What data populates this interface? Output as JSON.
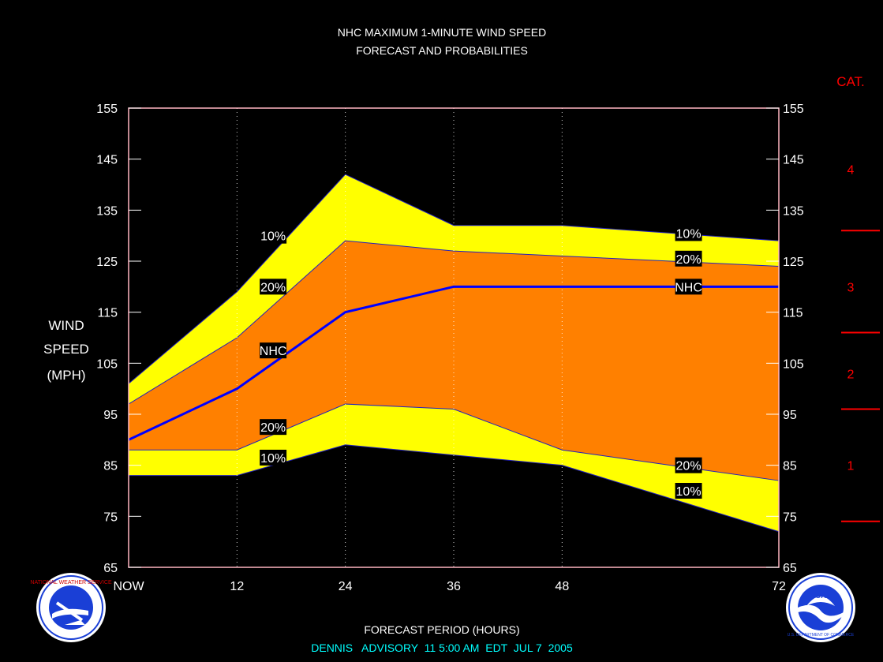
{
  "chart_data": {
    "type": "area",
    "title": "NHC MAXIMUM 1-MINUTE WIND SPEED",
    "subtitle": "FORECAST AND PROBABILITIES",
    "ylabel": [
      "WIND",
      "SPEED",
      "(MPH)"
    ],
    "xlabel": "FORECAST PERIOD (HOURS)",
    "advisory": "DENNIS   ADVISORY  11 5:00 AM  EDT  JUL 7  2005",
    "xlim": [
      0,
      72
    ],
    "ylim": [
      65,
      155
    ],
    "yticks": [
      65,
      75,
      85,
      95,
      105,
      115,
      125,
      135,
      145,
      155
    ],
    "xticks": [
      {
        "x": 0,
        "label": "NOW"
      },
      {
        "x": 12,
        "label": "12"
      },
      {
        "x": 24,
        "label": "24"
      },
      {
        "x": 36,
        "label": "36"
      },
      {
        "x": 48,
        "label": "48"
      },
      {
        "x": 72,
        "label": "72"
      }
    ],
    "x": [
      0,
      12,
      24,
      36,
      48,
      72
    ],
    "series": [
      {
        "name": "10%",
        "role": "upper",
        "values": [
          101,
          119,
          142,
          132,
          132,
          129
        ]
      },
      {
        "name": "20%",
        "role": "upper",
        "values": [
          97,
          110,
          129,
          127,
          126,
          124
        ]
      },
      {
        "name": "NHC",
        "role": "forecast",
        "values": [
          90,
          100,
          115,
          120,
          120,
          120
        ]
      },
      {
        "name": "20%",
        "role": "lower",
        "values": [
          88,
          88,
          97,
          96,
          88,
          82
        ]
      },
      {
        "name": "10%",
        "role": "lower",
        "values": [
          83,
          83,
          89,
          87,
          85,
          72
        ]
      }
    ],
    "curve_labels": [
      {
        "text": "10%",
        "x": 16,
        "y": 130
      },
      {
        "text": "20%",
        "x": 16,
        "y": 120
      },
      {
        "text": "NHC",
        "x": 16,
        "y": 107.5
      },
      {
        "text": "20%",
        "x": 16,
        "y": 92.5
      },
      {
        "text": "10%",
        "x": 16,
        "y": 86.5
      },
      {
        "text": "10%",
        "x": 62,
        "y": 130.5
      },
      {
        "text": "20%",
        "x": 62,
        "y": 125.5
      },
      {
        "text": "NHC",
        "x": 62,
        "y": 120
      },
      {
        "text": "20%",
        "x": 62,
        "y": 85
      },
      {
        "text": "10%",
        "x": 62,
        "y": 80
      }
    ],
    "category_title": "CAT.",
    "categories": [
      {
        "label": "1",
        "y": 85
      },
      {
        "label": "2",
        "y": 103
      },
      {
        "label": "3",
        "y": 120
      },
      {
        "label": "4",
        "y": 143
      }
    ],
    "category_bounds": [
      74,
      96,
      111,
      131
    ],
    "colors": {
      "outer_band": "#ffff00",
      "inner_band": "#ff8000",
      "forecast_line": "#0000ff",
      "frame": "#ffb6c1",
      "category": "#ff0000",
      "advisory": "#00ffff"
    }
  },
  "logos": {
    "left": "nws-logo",
    "right": "noaa-logo",
    "left_text": "NATIONAL WEATHER SERVICE",
    "right_text": "U.S. DEPARTMENT OF COMMERCE",
    "right_badge": "NOAA"
  }
}
